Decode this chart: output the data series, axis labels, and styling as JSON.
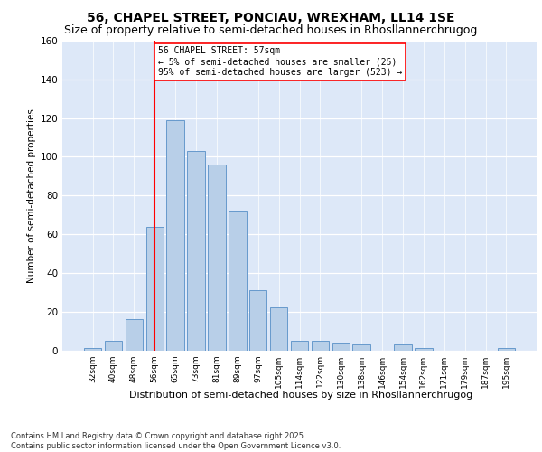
{
  "title": "56, CHAPEL STREET, PONCIAU, WREXHAM, LL14 1SE",
  "subtitle": "Size of property relative to semi-detached houses in Rhosllannerchrugog",
  "xlabel": "Distribution of semi-detached houses by size in Rhosllannerchrugog",
  "ylabel": "Number of semi-detached properties",
  "categories": [
    "32sqm",
    "40sqm",
    "48sqm",
    "56sqm",
    "65sqm",
    "73sqm",
    "81sqm",
    "89sqm",
    "97sqm",
    "105sqm",
    "114sqm",
    "122sqm",
    "130sqm",
    "138sqm",
    "146sqm",
    "154sqm",
    "162sqm",
    "171sqm",
    "179sqm",
    "187sqm",
    "195sqm"
  ],
  "values": [
    1,
    5,
    16,
    64,
    119,
    103,
    96,
    72,
    31,
    22,
    5,
    5,
    4,
    3,
    0,
    3,
    1,
    0,
    0,
    0,
    1
  ],
  "bar_color": "#b8cfe8",
  "bar_edge_color": "#6699cc",
  "vline_x_index": 3,
  "annotation_text_1": "56 CHAPEL STREET: 57sqm",
  "annotation_text_2": "← 5% of semi-detached houses are smaller (25)",
  "annotation_text_3": "95% of semi-detached houses are larger (523) →",
  "title_fontsize": 10,
  "subtitle_fontsize": 9,
  "footer_text": "Contains HM Land Registry data © Crown copyright and database right 2025.\nContains public sector information licensed under the Open Government Licence v3.0.",
  "background_color": "#dde8f8",
  "ylim": [
    0,
    160
  ],
  "yticks": [
    0,
    20,
    40,
    60,
    80,
    100,
    120,
    140,
    160
  ]
}
